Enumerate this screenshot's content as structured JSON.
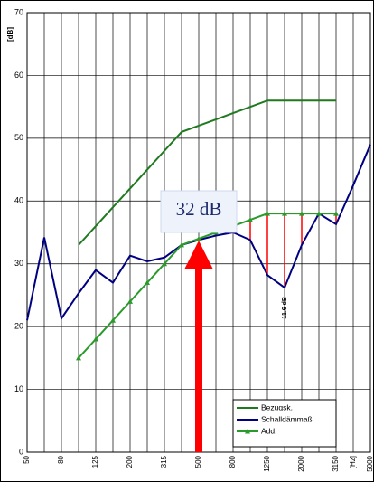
{
  "chart_data": {
    "type": "line",
    "y_label": "[dB]",
    "categories": [
      "50",
      null,
      "80",
      null,
      "125",
      null,
      "200",
      null,
      "315",
      null,
      "500",
      null,
      "800",
      null,
      "1250",
      null,
      "2000",
      null,
      "3150",
      "[Hz]",
      "5000"
    ],
    "series": [
      {
        "name": "Bezugsk.",
        "color": "#1f7a1f",
        "marker": false,
        "values": [
          null,
          null,
          null,
          33,
          36,
          39,
          42,
          45,
          48,
          51,
          52,
          53,
          54,
          55,
          56,
          56,
          56,
          56,
          56,
          null,
          null
        ]
      },
      {
        "name": "Schalldämmaß",
        "color": "#000080",
        "marker": false,
        "values": [
          21,
          34.2,
          21.3,
          25.3,
          29,
          27,
          31.3,
          30.4,
          31,
          33,
          33.8,
          34.5,
          35,
          33.8,
          28.2,
          26.2,
          33,
          38,
          36.3,
          42.5,
          49
        ]
      },
      {
        "name": "Add.",
        "color": "#2a9a2a",
        "marker": true,
        "values": [
          null,
          null,
          null,
          15,
          18,
          21,
          24,
          27,
          30,
          33,
          34,
          35,
          36,
          37,
          38,
          38,
          38,
          38,
          38,
          null,
          null
        ]
      }
    ],
    "annotations": [
      "32 dB",
      "11.6 dB"
    ],
    "ylim": [
      0,
      70
    ],
    "yticks": [
      0,
      10,
      20,
      30,
      40,
      50,
      60,
      70
    ],
    "grid": true
  }
}
